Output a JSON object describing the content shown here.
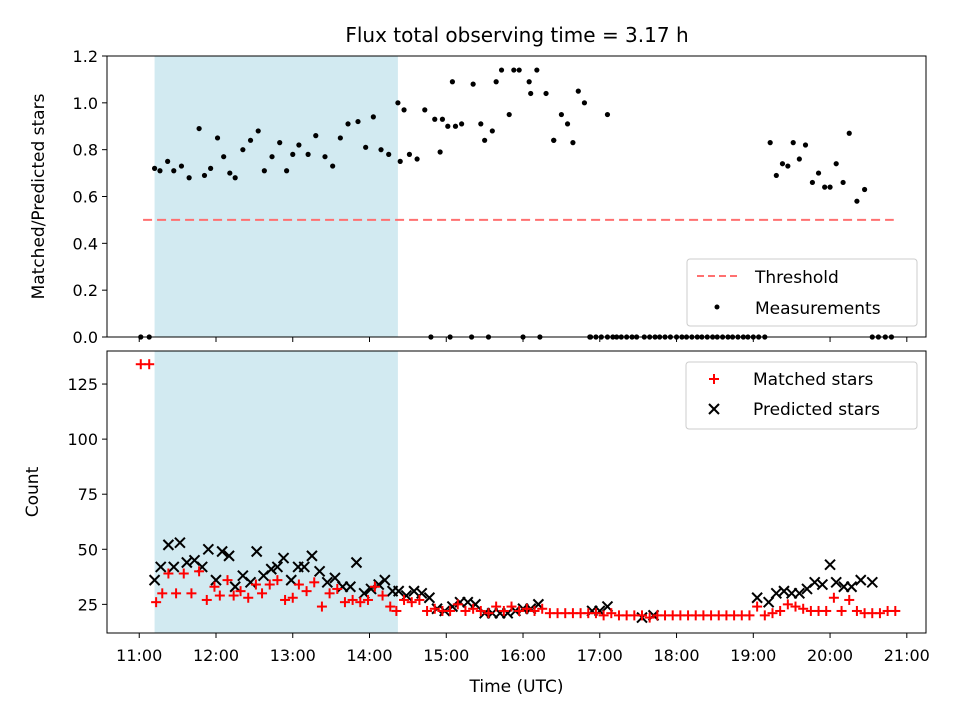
{
  "chart_data": {
    "title": "Flux total observing time = 3.17 h",
    "xlabel": "Time (UTC)",
    "x_ticks": [
      "11:00",
      "12:00",
      "13:00",
      "14:00",
      "15:00",
      "16:00",
      "17:00",
      "18:00",
      "19:00",
      "20:00",
      "21:00"
    ],
    "x_range_hours": [
      10.58,
      21.25
    ],
    "shaded_span_hours": [
      11.2,
      14.37
    ],
    "colors": {
      "shade": "#add8e6",
      "threshold": "#ff7070",
      "matched": "#ff0000",
      "predicted": "#000000",
      "measurement": "#000000"
    },
    "panels": [
      {
        "type": "scatter",
        "ylabel": "Matched/Predicted stars",
        "ylim": [
          0,
          1.2
        ],
        "y_ticks": [
          "0.0",
          "0.2",
          "0.4",
          "0.6",
          "0.8",
          "1.0",
          "1.2"
        ],
        "legend_position": "lower-right",
        "threshold": {
          "name": "Threshold",
          "value": 0.5,
          "x_range_hours": [
            11.05,
            20.83
          ]
        },
        "series": [
          {
            "name": "Measurements",
            "x": [
              11.02,
              11.13,
              11.2,
              11.27,
              11.37,
              11.45,
              11.55,
              11.65,
              11.78,
              11.85,
              11.93,
              12.02,
              12.1,
              12.18,
              12.25,
              12.35,
              12.45,
              12.55,
              12.63,
              12.73,
              12.83,
              12.92,
              13.0,
              13.08,
              13.2,
              13.3,
              13.42,
              13.52,
              13.62,
              13.72,
              13.85,
              13.95,
              14.05,
              14.15,
              14.25,
              14.37,
              14.4,
              14.52,
              14.62,
              14.72,
              14.85,
              14.92,
              15.02,
              15.08,
              15.2,
              15.35,
              15.5,
              15.6,
              15.72,
              15.82,
              15.95,
              16.08,
              16.18,
              16.3,
              16.4,
              16.5,
              16.58,
              16.65,
              16.72,
              16.8,
              16.87,
              16.95,
              17.02,
              17.1,
              17.17,
              17.22,
              17.28,
              17.35,
              17.42,
              17.48,
              17.58,
              17.65,
              17.72,
              17.78,
              17.85,
              17.92,
              18.0,
              18.07,
              18.13,
              18.2,
              18.27,
              18.33,
              18.4,
              18.47,
              18.53,
              18.6,
              18.67,
              18.73,
              18.8,
              18.87,
              18.93,
              19.0,
              19.07,
              19.15,
              19.22,
              19.3,
              19.38,
              19.45,
              19.52,
              19.6,
              19.68,
              19.77,
              19.85,
              19.93,
              20.0,
              20.08,
              20.17,
              20.25,
              20.35,
              20.45,
              20.55,
              20.63,
              20.72,
              20.8
            ],
            "y": [
              0,
              0,
              0.72,
              0.71,
              0.75,
              0.71,
              0.73,
              0.68,
              0.89,
              0.69,
              0.72,
              0.85,
              0.77,
              0.7,
              0.68,
              0.8,
              0.84,
              0.88,
              0.71,
              0.77,
              0.83,
              0.71,
              0.78,
              0.82,
              0.78,
              0.86,
              0.77,
              0.73,
              0.85,
              0.91,
              0.92,
              0.81,
              0.94,
              0.8,
              0.78,
              1.0,
              0.75,
              0.78,
              0.76,
              0.97,
              0.93,
              0.79,
              0.9,
              1.09,
              0.91,
              1.08,
              0.84,
              0.88,
              1.14,
              0.95,
              1.14,
              1.09,
              1.14,
              1.04,
              0.84,
              0.95,
              0.91,
              0.83,
              1.05,
              1.0,
              0,
              0,
              0,
              0,
              0,
              0,
              0,
              0,
              0,
              0,
              0,
              0,
              0,
              0,
              0,
              0,
              0,
              0,
              0,
              0,
              0,
              0,
              0,
              0,
              0,
              0,
              0,
              0,
              0,
              0,
              0,
              0,
              0,
              0,
              0.83,
              0.69,
              0.74,
              0.73,
              0.83,
              0.76,
              0.82,
              0.66,
              0.7,
              0.64,
              0.64,
              0.74,
              0.66,
              0.87,
              0.58,
              0.63,
              0,
              0,
              0,
              0
            ],
            "x_extra": [
              14.45,
              14.8,
              14.95,
              15.05,
              15.12,
              15.33,
              15.45,
              15.55,
              15.65,
              15.88,
              16.0,
              16.1,
              16.22,
              16.4,
              16.88,
              17.1
            ],
            "y_extra": [
              0.97,
              0,
              0.93,
              0,
              0.9,
              0,
              0.91,
              0,
              1.09,
              1.14,
              0,
              1.04,
              0,
              0.84,
              0,
              0.95
            ]
          }
        ]
      },
      {
        "type": "scatter",
        "ylabel": "Count",
        "ylim": [
          12,
          140
        ],
        "y_ticks": [
          "25",
          "50",
          "75",
          "100",
          "125"
        ],
        "legend_position": "upper-right",
        "series": [
          {
            "name": "Matched stars",
            "marker": "+",
            "x": [
              11.02,
              11.13,
              11.22,
              11.3,
              11.38,
              11.48,
              11.58,
              11.68,
              11.78,
              11.88,
              11.98,
              12.05,
              12.15,
              12.23,
              12.32,
              12.42,
              12.52,
              12.6,
              12.7,
              12.8,
              12.9,
              13.0,
              13.08,
              13.18,
              13.28,
              13.38,
              13.48,
              13.58,
              13.68,
              13.78,
              13.88,
              13.98,
              14.07,
              14.17,
              14.27,
              14.35,
              14.45,
              14.55,
              14.65,
              14.75,
              14.85,
              14.95,
              15.05,
              15.15,
              15.25,
              15.35,
              15.45,
              15.55,
              15.65,
              15.75,
              15.85,
              15.95,
              16.05,
              16.15,
              16.25,
              16.35,
              16.45,
              16.55,
              16.65,
              16.75,
              16.85,
              16.95,
              17.05,
              17.15,
              17.25,
              17.35,
              17.45,
              17.55,
              17.65,
              17.75,
              17.85,
              17.95,
              18.05,
              18.15,
              18.25,
              18.35,
              18.45,
              18.55,
              18.65,
              18.75,
              18.85,
              18.95,
              19.05,
              19.15,
              19.25,
              19.35,
              19.45,
              19.55,
              19.65,
              19.75,
              19.85,
              19.95,
              20.05,
              20.15,
              20.25,
              20.35,
              20.45,
              20.55,
              20.65,
              20.75,
              20.85
            ],
            "y": [
              134,
              134,
              26,
              30,
              39,
              30,
              39,
              30,
              40,
              27,
              33,
              29,
              36,
              29,
              31,
              28,
              34,
              30,
              34,
              36,
              27,
              28,
              34,
              31,
              35,
              24,
              30,
              32,
              26,
              27,
              26,
              27,
              33,
              29,
              24,
              22,
              27,
              26,
              27,
              22,
              23,
              22,
              22,
              25,
              22,
              23,
              22,
              21,
              24,
              22,
              24,
              22,
              23,
              22,
              23,
              21,
              21,
              21,
              21,
              21,
              21,
              21,
              20,
              21,
              20,
              20,
              20,
              20,
              19,
              20,
              20,
              20,
              20,
              20,
              20,
              20,
              20,
              20,
              20,
              20,
              20,
              20,
              24,
              20,
              21,
              22,
              25,
              24,
              23,
              22,
              22,
              22,
              28,
              22,
              27,
              22,
              21,
              21,
              21,
              22,
              22
            ]
          },
          {
            "name": "Predicted stars",
            "marker": "x",
            "x": [
              11.2,
              11.28,
              11.38,
              11.45,
              11.53,
              11.62,
              11.72,
              11.82,
              11.9,
              12.0,
              12.08,
              12.17,
              12.25,
              12.35,
              12.45,
              12.53,
              12.62,
              12.72,
              12.8,
              12.88,
              12.98,
              13.07,
              13.15,
              13.25,
              13.35,
              13.45,
              13.55,
              13.65,
              13.75,
              13.83,
              13.93,
              14.02,
              14.12,
              14.2,
              14.3,
              14.38,
              14.48,
              14.58,
              14.68,
              14.78,
              14.88,
              14.98,
              15.08,
              15.18,
              15.28,
              15.38,
              15.5,
              15.6,
              15.7,
              15.8,
              15.9,
              16.0,
              16.1,
              16.2,
              16.9,
              17.0,
              17.1,
              17.55,
              17.7,
              19.05,
              19.2,
              19.3,
              19.4,
              19.5,
              19.6,
              19.7,
              19.8,
              19.9,
              20.0,
              20.08,
              20.18,
              20.28,
              20.4,
              20.55
            ],
            "y": [
              36,
              42,
              52,
              42,
              53,
              44,
              45,
              42,
              50,
              36,
              49,
              47,
              33,
              38,
              35,
              49,
              38,
              41,
              42,
              46,
              36,
              42,
              42,
              47,
              40,
              35,
              37,
              33,
              33,
              44,
              30,
              32,
              34,
              36,
              31,
              31,
              29,
              31,
              30,
              28,
              23,
              22,
              24,
              26,
              26,
              25,
              21,
              21,
              21,
              21,
              22,
              23,
              23,
              25,
              22,
              22,
              24,
              19,
              20,
              28,
              26,
              30,
              31,
              30,
              30,
              32,
              35,
              34,
              43,
              35,
              33,
              33,
              36,
              35
            ]
          }
        ]
      }
    ]
  }
}
